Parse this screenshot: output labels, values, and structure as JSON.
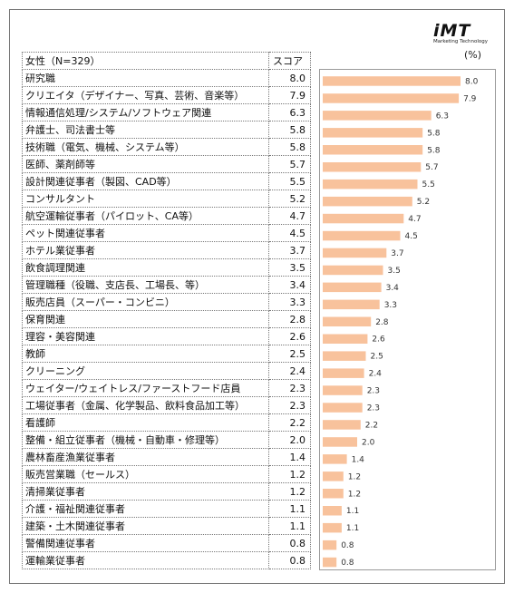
{
  "logo": {
    "main": "iMT",
    "sub": "Marketing Technology"
  },
  "unit_label": "(%)",
  "table": {
    "header_label": "女性（N=329）",
    "header_score": "スコア"
  },
  "chart_data": {
    "type": "bar",
    "orientation": "horizontal",
    "categories": [
      "研究職",
      "クリエイタ（デザイナー、写真、芸術、音楽等）",
      "情報通信処理/システム/ソフトウェア関連",
      "弁護士、司法書士等",
      "技術職（電気、機械、システム等）",
      "医師、薬剤師等",
      "設計関連従事者（製図、CAD等）",
      "コンサルタント",
      "航空運輸従事者（パイロット、CA等）",
      "ペット関連従事者",
      "ホテル業従事者",
      "飲食調理関連",
      "管理職種（役職、支店長、工場長、等）",
      "販売店員（スーパー・コンビニ）",
      "保育関連",
      "理容・美容関連",
      "教師",
      "クリーニング",
      "ウェイター/ウェイトレス/ファーストフード店員",
      "工場従事者（金属、化学製品、飲料食品加工等）",
      "看護師",
      "整備・組立従事者（機械・自動車・修理等）",
      "農林畜産漁業従事者",
      "販売営業職（セールス）",
      "清掃業従事者",
      "介護・福祉関連従事者",
      "建築・土木関連従事者",
      "警備関連従事者",
      "運輸業従事者"
    ],
    "values": [
      8.0,
      7.9,
      6.3,
      5.8,
      5.8,
      5.7,
      5.5,
      5.2,
      4.7,
      4.5,
      3.7,
      3.5,
      3.4,
      3.3,
      2.8,
      2.6,
      2.5,
      2.4,
      2.3,
      2.3,
      2.2,
      2.0,
      1.4,
      1.2,
      1.2,
      1.1,
      1.1,
      0.8,
      0.8
    ],
    "value_labels": [
      "8.0",
      "7.9",
      "6.3",
      "5.8",
      "5.8",
      "5.7",
      "5.5",
      "5.2",
      "4.7",
      "4.5",
      "3.7",
      "3.5",
      "3.4",
      "3.3",
      "2.8",
      "2.6",
      "2.5",
      "2.4",
      "2.3",
      "2.3",
      "2.2",
      "2.0",
      "1.4",
      "1.2",
      "1.2",
      "1.1",
      "1.1",
      "0.8",
      "0.8"
    ],
    "bar_color": "#F8C29C",
    "xlim": [
      0,
      8.0
    ],
    "grid": false,
    "legend": "none"
  }
}
